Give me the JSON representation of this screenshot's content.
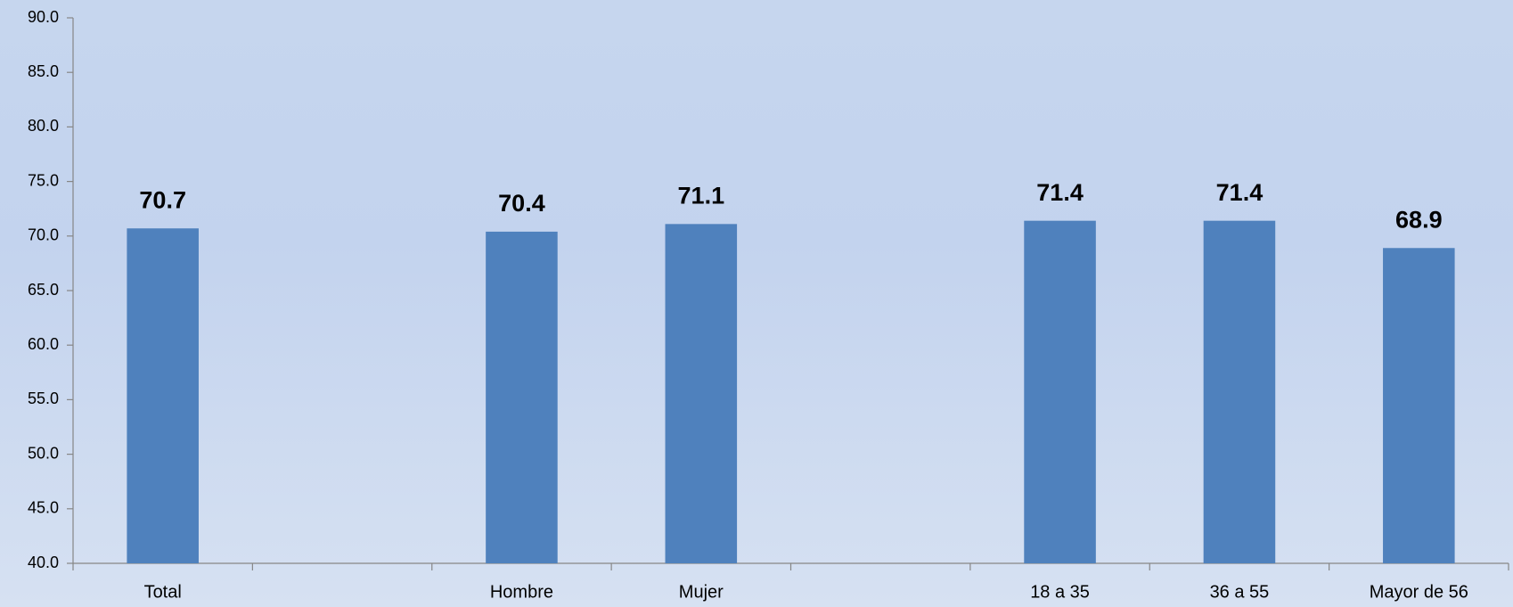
{
  "chart_data": {
    "type": "bar",
    "categories": [
      "Total",
      null,
      "Hombre",
      "Mujer",
      null,
      "18 a 35",
      "36 a 55",
      "Mayor de 56"
    ],
    "values": [
      70.7,
      null,
      70.4,
      71.1,
      null,
      71.4,
      71.4,
      68.9
    ],
    "color": "#4f81bd",
    "ylim": [
      40,
      90
    ],
    "yticks": [
      {
        "value": 40,
        "label": "40.0"
      },
      {
        "value": 45,
        "label": "45.0"
      },
      {
        "value": 50,
        "label": "50.0"
      },
      {
        "value": 55,
        "label": "55.0"
      },
      {
        "value": 60,
        "label": "60.0"
      },
      {
        "value": 65,
        "label": "65.0"
      },
      {
        "value": 70,
        "label": "70.0"
      },
      {
        "value": 75,
        "label": "75.0"
      },
      {
        "value": 80,
        "label": "80.0"
      },
      {
        "value": 85,
        "label": "85.0"
      },
      {
        "value": 90,
        "label": "90.0"
      }
    ],
    "grid": false
  }
}
